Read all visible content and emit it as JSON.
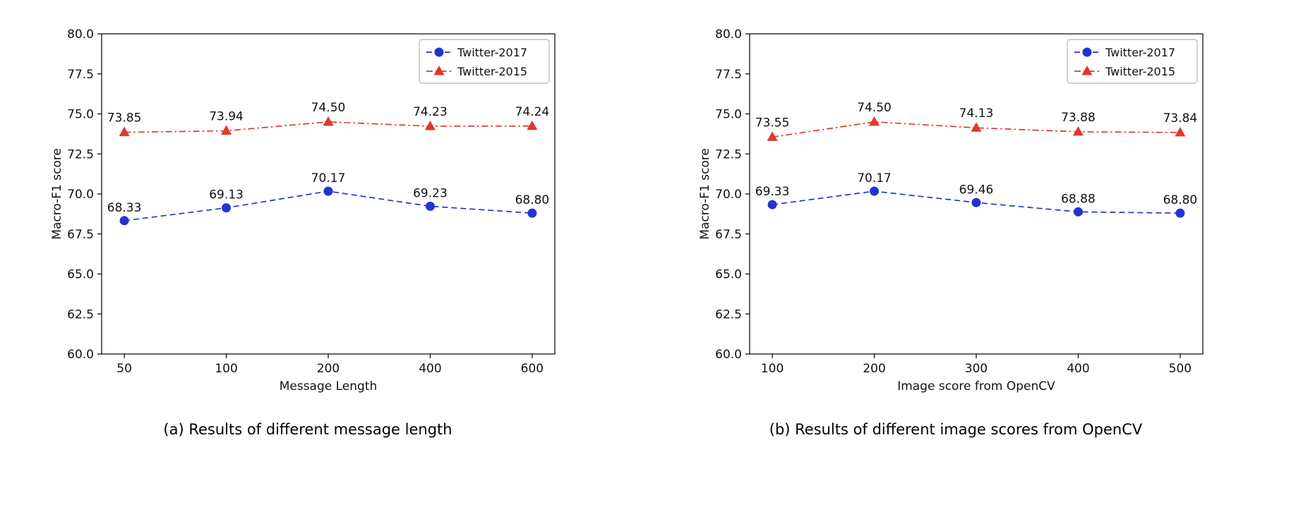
{
  "colors": {
    "twitter2017_blue": "#2333d0",
    "twitter2015_red": "#e0382d",
    "axis": "#000000",
    "legend_border": "#b8b8b8"
  },
  "chart_data": [
    {
      "type": "line",
      "caption": "(a) Results of different message length",
      "xlabel": "Message Length",
      "ylabel": "Macro-F1 score",
      "categories": [
        "50",
        "100",
        "200",
        "400",
        "600"
      ],
      "ylim": [
        60.0,
        80.0
      ],
      "yticks": [
        60.0,
        62.5,
        65.0,
        67.5,
        70.0,
        72.5,
        75.0,
        77.5,
        80.0
      ],
      "grid": false,
      "legend_position": "top-right",
      "series": [
        {
          "name": "Twitter-2017",
          "values": [
            68.33,
            69.13,
            70.17,
            69.23,
            68.8
          ],
          "color": "#2333d0",
          "marker": "circle",
          "dash": "dashed"
        },
        {
          "name": "Twitter-2015",
          "values": [
            73.85,
            73.94,
            74.5,
            74.23,
            74.24
          ],
          "color": "#e0382d",
          "marker": "triangle",
          "dash": "dashdot"
        }
      ]
    },
    {
      "type": "line",
      "caption": "(b) Results of different image scores from OpenCV",
      "xlabel": "Image score from OpenCV",
      "ylabel": "Macro-F1 score",
      "categories": [
        "100",
        "200",
        "300",
        "400",
        "500"
      ],
      "ylim": [
        60.0,
        80.0
      ],
      "yticks": [
        60.0,
        62.5,
        65.0,
        67.5,
        70.0,
        72.5,
        75.0,
        77.5,
        80.0
      ],
      "grid": false,
      "legend_position": "top-right",
      "series": [
        {
          "name": "Twitter-2017",
          "values": [
            69.33,
            70.17,
            69.46,
            68.88,
            68.8
          ],
          "color": "#2333d0",
          "marker": "circle",
          "dash": "dashed"
        },
        {
          "name": "Twitter-2015",
          "values": [
            73.55,
            74.5,
            74.13,
            73.88,
            73.84
          ],
          "color": "#e0382d",
          "marker": "triangle",
          "dash": "dashdot"
        }
      ]
    }
  ]
}
